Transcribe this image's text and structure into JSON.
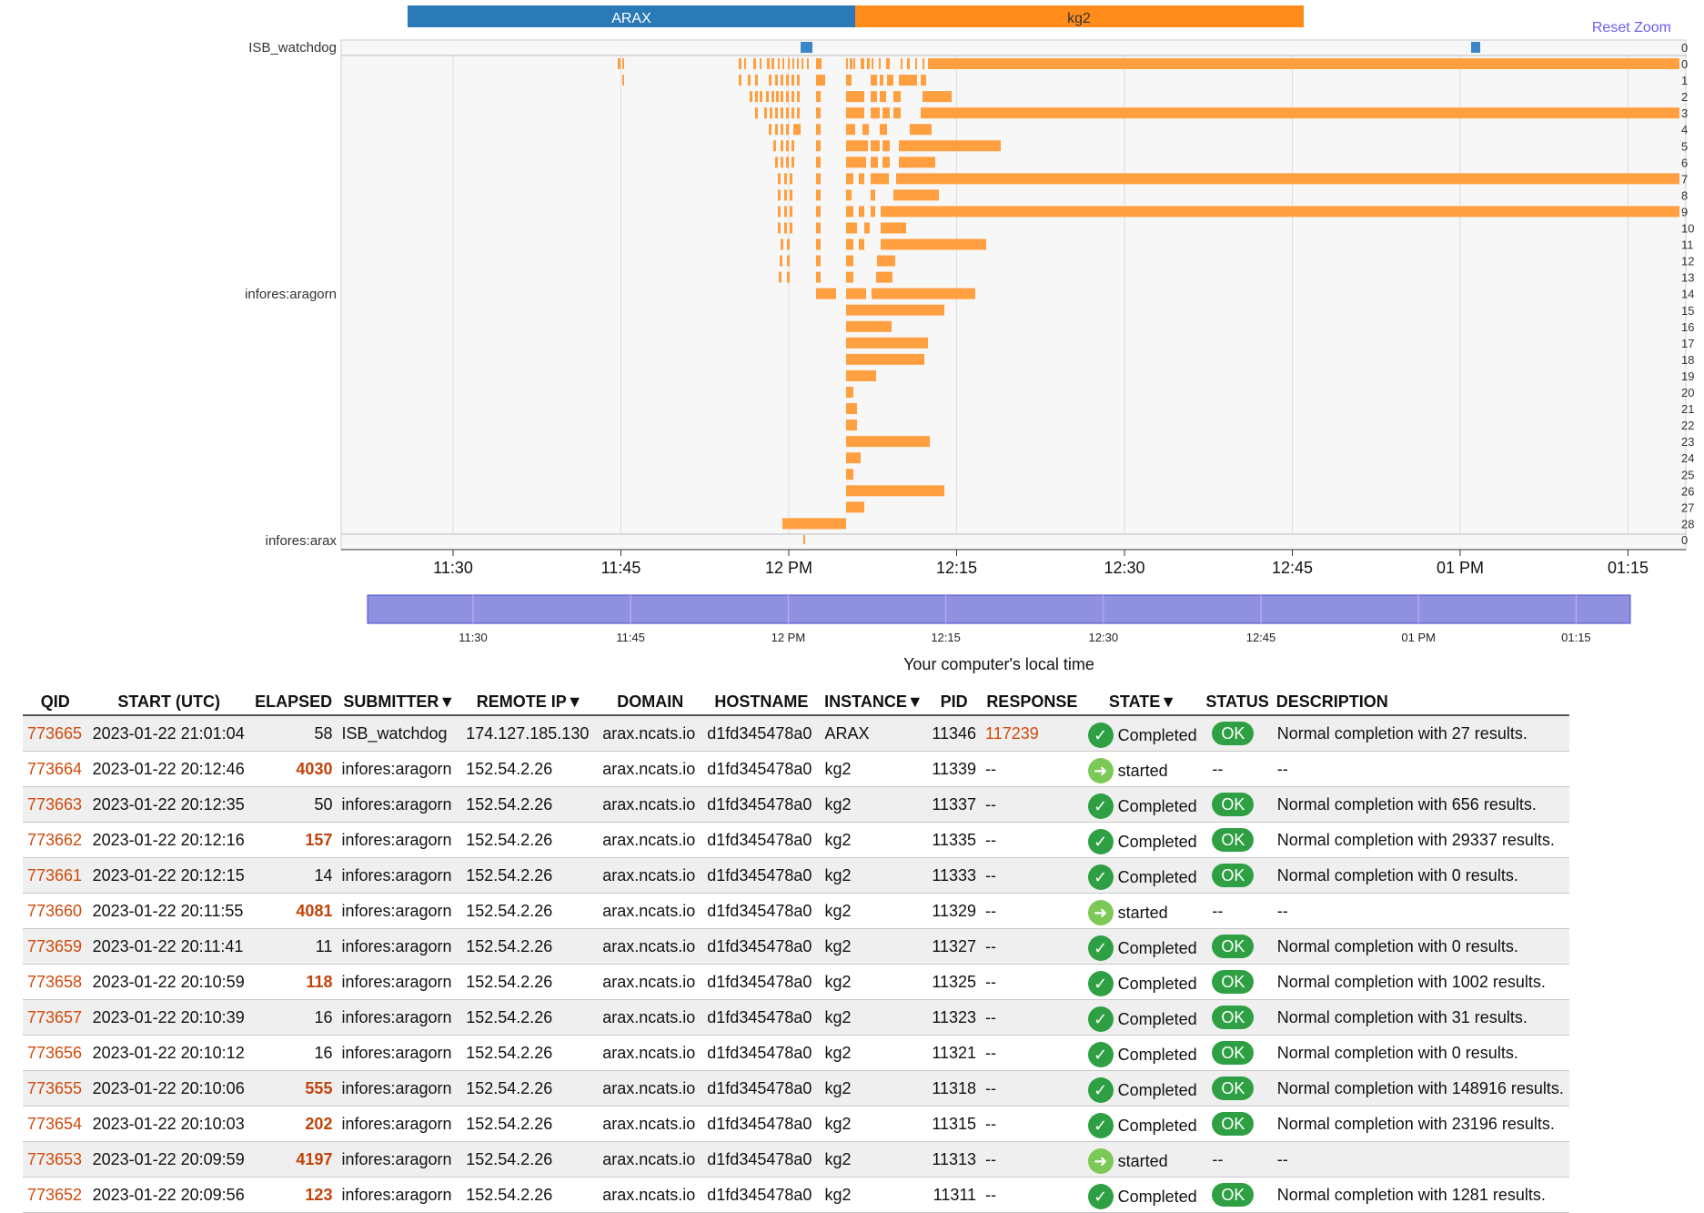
{
  "timeline": {
    "legend": [
      {
        "label": "ARAX",
        "color": "#2a7ab8"
      },
      {
        "label": "kg2",
        "color": "#ff8c1a"
      }
    ],
    "reset_zoom_label": "Reset Zoom",
    "groups": [
      {
        "name": "ISB_watchdog",
        "lanes": [
          "0"
        ]
      },
      {
        "name": "infores:aragorn",
        "lanes": [
          "0",
          "1",
          "2",
          "3",
          "4",
          "5",
          "6",
          "7",
          "8",
          "9",
          "10",
          "11",
          "12",
          "13",
          "14",
          "15",
          "16",
          "17",
          "18",
          "19",
          "20",
          "21",
          "22",
          "23",
          "24",
          "25",
          "26",
          "27",
          "28"
        ]
      },
      {
        "name": "infores:arax",
        "lanes": [
          "0"
        ]
      }
    ],
    "axis_ticks": [
      "11:30",
      "11:45",
      "12 PM",
      "12:15",
      "12:30",
      "12:45",
      "01 PM",
      "01:15"
    ],
    "navigator_ticks": [
      "11:30",
      "11:45",
      "12 PM",
      "12:15",
      "12:30",
      "12:45",
      "01 PM",
      "01:15"
    ],
    "navigator_caption": "Your computer's local time",
    "bar_color": "#ff9f40",
    "arax_color": "#3a86c8",
    "navigator_color": "#9090e0"
  },
  "table": {
    "columns": [
      "QID",
      "START (UTC)",
      "ELAPSED",
      "SUBMITTER▼",
      "REMOTE IP▼",
      "DOMAIN",
      "HOSTNAME",
      "INSTANCE▼",
      "PID",
      "RESPONSE",
      "STATE▼",
      "STATUS",
      "DESCRIPTION"
    ],
    "rows": [
      {
        "qid": "773665",
        "start": "2023-01-22 21:01:04",
        "elapsed": "58",
        "elapsed_hi": false,
        "submitter": "ISB_watchdog",
        "ip": "174.127.185.130",
        "domain": "arax.ncats.io",
        "hostname": "d1fd345478a0",
        "instance": "ARAX",
        "pid": "11346",
        "response": "117239",
        "state": "Completed",
        "status": "OK",
        "description": "Normal completion with 27 results."
      },
      {
        "qid": "773664",
        "start": "2023-01-22 20:12:46",
        "elapsed": "4030",
        "elapsed_hi": true,
        "submitter": "infores:aragorn",
        "ip": "152.54.2.26",
        "domain": "arax.ncats.io",
        "hostname": "d1fd345478a0",
        "instance": "kg2",
        "pid": "11339",
        "response": "--",
        "state": "started",
        "status": "--",
        "description": "--"
      },
      {
        "qid": "773663",
        "start": "2023-01-22 20:12:35",
        "elapsed": "50",
        "elapsed_hi": false,
        "submitter": "infores:aragorn",
        "ip": "152.54.2.26",
        "domain": "arax.ncats.io",
        "hostname": "d1fd345478a0",
        "instance": "kg2",
        "pid": "11337",
        "response": "--",
        "state": "Completed",
        "status": "OK",
        "description": "Normal completion with 656 results."
      },
      {
        "qid": "773662",
        "start": "2023-01-22 20:12:16",
        "elapsed": "157",
        "elapsed_hi": true,
        "submitter": "infores:aragorn",
        "ip": "152.54.2.26",
        "domain": "arax.ncats.io",
        "hostname": "d1fd345478a0",
        "instance": "kg2",
        "pid": "11335",
        "response": "--",
        "state": "Completed",
        "status": "OK",
        "description": "Normal completion with 29337 results."
      },
      {
        "qid": "773661",
        "start": "2023-01-22 20:12:15",
        "elapsed": "14",
        "elapsed_hi": false,
        "submitter": "infores:aragorn",
        "ip": "152.54.2.26",
        "domain": "arax.ncats.io",
        "hostname": "d1fd345478a0",
        "instance": "kg2",
        "pid": "11333",
        "response": "--",
        "state": "Completed",
        "status": "OK",
        "description": "Normal completion with 0 results."
      },
      {
        "qid": "773660",
        "start": "2023-01-22 20:11:55",
        "elapsed": "4081",
        "elapsed_hi": true,
        "submitter": "infores:aragorn",
        "ip": "152.54.2.26",
        "domain": "arax.ncats.io",
        "hostname": "d1fd345478a0",
        "instance": "kg2",
        "pid": "11329",
        "response": "--",
        "state": "started",
        "status": "--",
        "description": "--"
      },
      {
        "qid": "773659",
        "start": "2023-01-22 20:11:41",
        "elapsed": "11",
        "elapsed_hi": false,
        "submitter": "infores:aragorn",
        "ip": "152.54.2.26",
        "domain": "arax.ncats.io",
        "hostname": "d1fd345478a0",
        "instance": "kg2",
        "pid": "11327",
        "response": "--",
        "state": "Completed",
        "status": "OK",
        "description": "Normal completion with 0 results."
      },
      {
        "qid": "773658",
        "start": "2023-01-22 20:10:59",
        "elapsed": "118",
        "elapsed_hi": true,
        "submitter": "infores:aragorn",
        "ip": "152.54.2.26",
        "domain": "arax.ncats.io",
        "hostname": "d1fd345478a0",
        "instance": "kg2",
        "pid": "11325",
        "response": "--",
        "state": "Completed",
        "status": "OK",
        "description": "Normal completion with 1002 results."
      },
      {
        "qid": "773657",
        "start": "2023-01-22 20:10:39",
        "elapsed": "16",
        "elapsed_hi": false,
        "submitter": "infores:aragorn",
        "ip": "152.54.2.26",
        "domain": "arax.ncats.io",
        "hostname": "d1fd345478a0",
        "instance": "kg2",
        "pid": "11323",
        "response": "--",
        "state": "Completed",
        "status": "OK",
        "description": "Normal completion with 31 results."
      },
      {
        "qid": "773656",
        "start": "2023-01-22 20:10:12",
        "elapsed": "16",
        "elapsed_hi": false,
        "submitter": "infores:aragorn",
        "ip": "152.54.2.26",
        "domain": "arax.ncats.io",
        "hostname": "d1fd345478a0",
        "instance": "kg2",
        "pid": "11321",
        "response": "--",
        "state": "Completed",
        "status": "OK",
        "description": "Normal completion with 0 results."
      },
      {
        "qid": "773655",
        "start": "2023-01-22 20:10:06",
        "elapsed": "555",
        "elapsed_hi": true,
        "submitter": "infores:aragorn",
        "ip": "152.54.2.26",
        "domain": "arax.ncats.io",
        "hostname": "d1fd345478a0",
        "instance": "kg2",
        "pid": "11318",
        "response": "--",
        "state": "Completed",
        "status": "OK",
        "description": "Normal completion with 148916 results."
      },
      {
        "qid": "773654",
        "start": "2023-01-22 20:10:03",
        "elapsed": "202",
        "elapsed_hi": true,
        "submitter": "infores:aragorn",
        "ip": "152.54.2.26",
        "domain": "arax.ncats.io",
        "hostname": "d1fd345478a0",
        "instance": "kg2",
        "pid": "11315",
        "response": "--",
        "state": "Completed",
        "status": "OK",
        "description": "Normal completion with 23196 results."
      },
      {
        "qid": "773653",
        "start": "2023-01-22 20:09:59",
        "elapsed": "4197",
        "elapsed_hi": true,
        "submitter": "infores:aragorn",
        "ip": "152.54.2.26",
        "domain": "arax.ncats.io",
        "hostname": "d1fd345478a0",
        "instance": "kg2",
        "pid": "11313",
        "response": "--",
        "state": "started",
        "status": "--",
        "description": "--"
      },
      {
        "qid": "773652",
        "start": "2023-01-22 20:09:56",
        "elapsed": "123",
        "elapsed_hi": true,
        "submitter": "infores:aragorn",
        "ip": "152.54.2.26",
        "domain": "arax.ncats.io",
        "hostname": "d1fd345478a0",
        "instance": "kg2",
        "pid": "11311",
        "response": "--",
        "state": "Completed",
        "status": "OK",
        "description": "Normal completion with 1281 results."
      }
    ]
  }
}
